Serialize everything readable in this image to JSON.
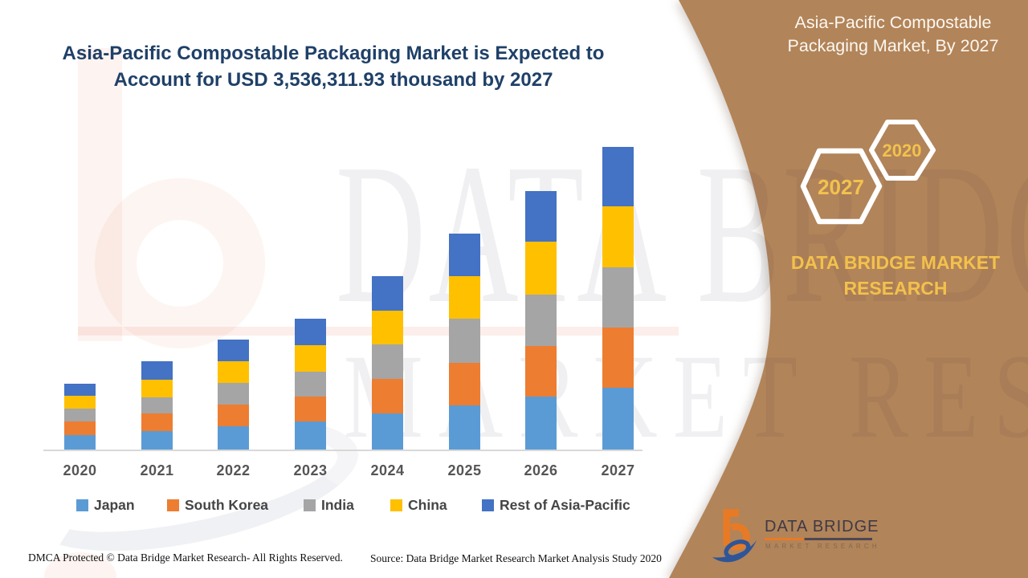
{
  "title": {
    "line1": "Asia-Pacific Compostable Packaging Market is Expected to",
    "line2": "Account for USD 3,536,311.93 thousand by 2027"
  },
  "side_panel": {
    "title_line1": "Asia-Pacific Compostable",
    "title_line2": "Packaging Market, By 2027",
    "hexagon_large_label": "2027",
    "hexagon_small_label": "2020",
    "caption": "DATA BRIDGE MARKET RESEARCH",
    "panel_color": "#B28459",
    "accent_gold": "#F2C24E"
  },
  "watermark": {
    "row1": "DATA BRIDGE",
    "row2": "MARKET RESEARCH"
  },
  "logo": {
    "name": "DATA BRIDGE",
    "tagline": "MARKET RESEARCH"
  },
  "footer": {
    "dmca": "DMCA Protected © Data Bridge Market Research- All Rights Reserved.",
    "source": "Source: Data Bridge Market Research Market Analysis Study 2020"
  },
  "chart_data": {
    "type": "bar",
    "stacked": true,
    "grid": false,
    "legend_position": "bottom",
    "title": "Asia-Pacific Compostable Packaging Market is Expected to Account for USD 3,536,311.93 thousand by 2027",
    "categories": [
      "2020",
      "2021",
      "2022",
      "2023",
      "2024",
      "2025",
      "2026",
      "2027"
    ],
    "series": [
      {
        "name": "Japan",
        "color": "#5B9BD5",
        "values": [
          18,
          23,
          29,
          35,
          45,
          55,
          66,
          77
        ]
      },
      {
        "name": "South Korea",
        "color": "#ED7D31",
        "values": [
          17,
          22,
          27,
          31,
          43,
          53,
          63,
          75
        ]
      },
      {
        "name": "India",
        "color": "#A5A5A5",
        "values": [
          16,
          20,
          27,
          31,
          43,
          55,
          64,
          75
        ]
      },
      {
        "name": "China",
        "color": "#FFC000",
        "values": [
          16,
          22,
          27,
          33,
          42,
          53,
          66,
          76
        ]
      },
      {
        "name": "Rest of Asia-Pacific",
        "color": "#4472C4",
        "values": [
          15,
          23,
          27,
          33,
          43,
          53,
          63,
          74
        ]
      }
    ],
    "value_axis": "none shown (stacked segment values are relative heights in px)",
    "bar_totals_relative": [
      82,
      110,
      137,
      163,
      216,
      269,
      322,
      377
    ],
    "annotation": "2027 total = USD 3,536,311.93 thousand"
  }
}
